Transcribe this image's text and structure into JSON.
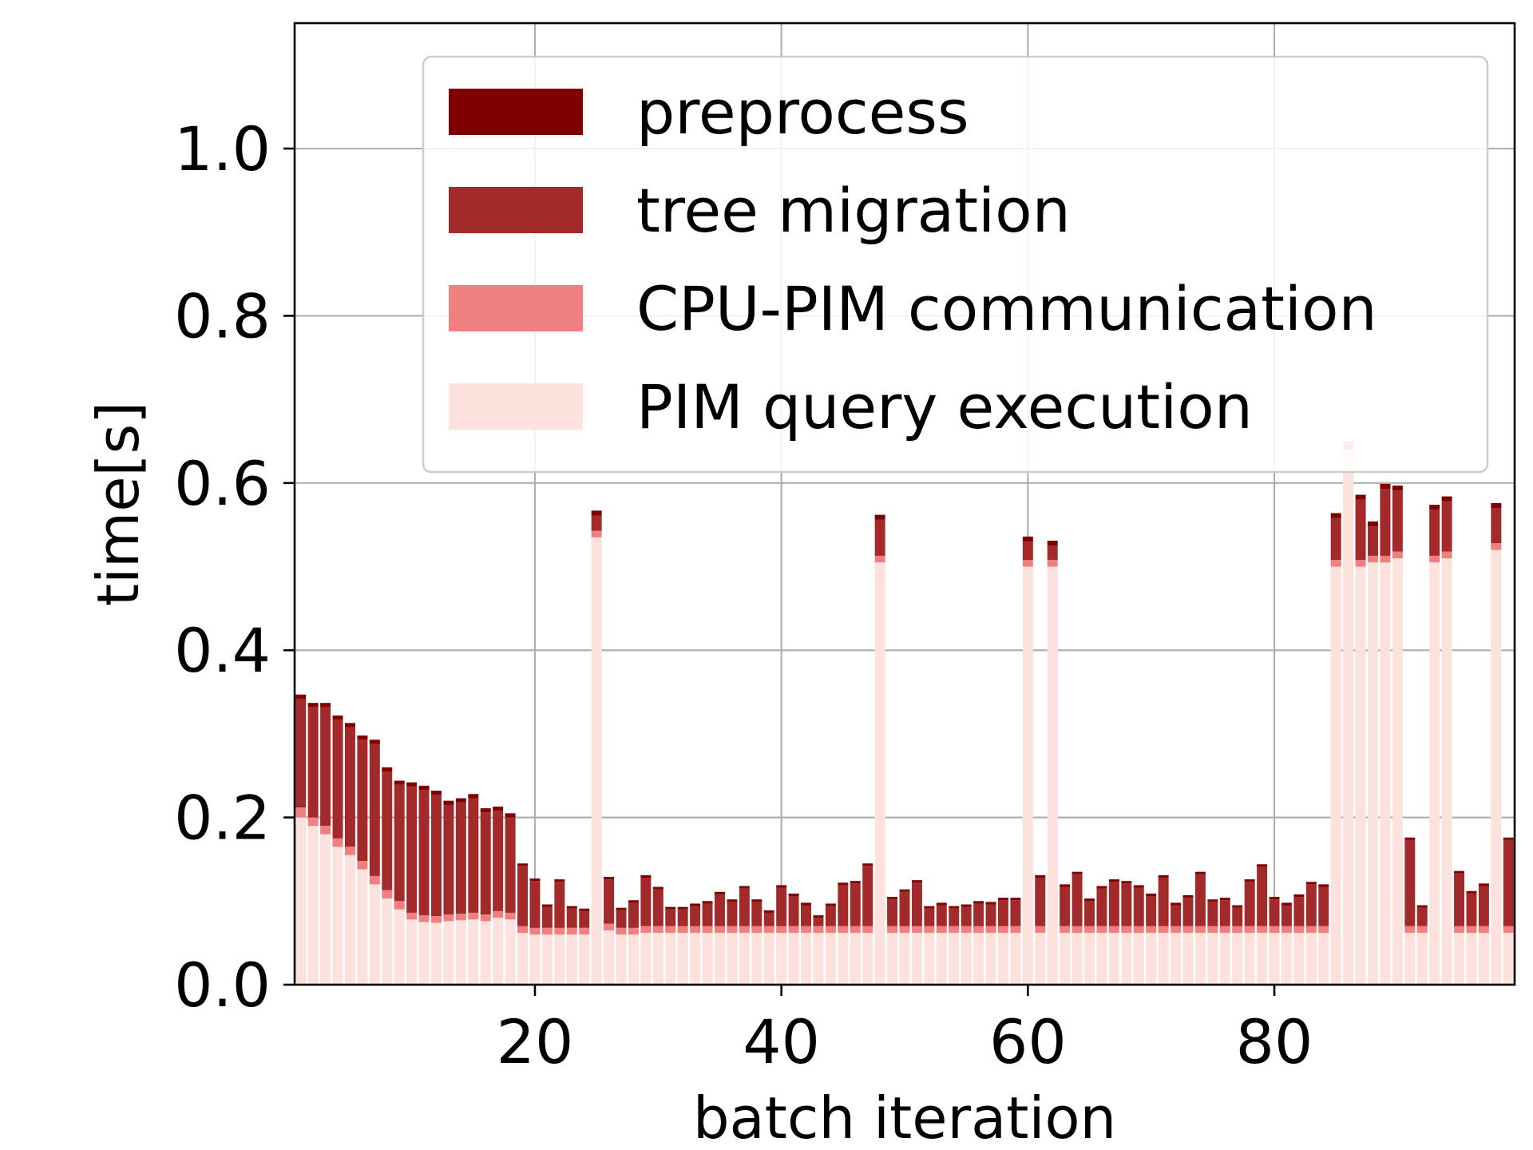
{
  "chart_data": {
    "type": "bar",
    "stacked": true,
    "xlabel": "batch iteration",
    "ylabel": "time[s]",
    "xlim": [
      0.5,
      99.5
    ],
    "ylim": [
      0,
      1.15
    ],
    "xticks": [
      20,
      40,
      60,
      80
    ],
    "yticks": [
      0.0,
      0.2,
      0.4,
      0.6,
      0.8,
      1.0
    ],
    "ytick_labels": [
      "0.0",
      "0.2",
      "0.4",
      "0.6",
      "0.8",
      "1.0"
    ],
    "grid": true,
    "legend_position": "upper-right",
    "series": [
      {
        "name": "PIM query execution",
        "color": "#fde1dd"
      },
      {
        "name": "CPU-PIM communication",
        "color": "#f08080"
      },
      {
        "name": "tree migration",
        "color": "#a32a2b"
      },
      {
        "name": "preprocess",
        "color": "#800000"
      }
    ],
    "legend_order": [
      "preprocess",
      "tree migration",
      "CPU-PIM communication",
      "PIM query execution"
    ],
    "iterations": [
      [
        1,
        0.2,
        0.012,
        0.13,
        0.005
      ],
      [
        2,
        0.19,
        0.01,
        0.132,
        0.005
      ],
      [
        3,
        0.18,
        0.01,
        0.142,
        0.005
      ],
      [
        4,
        0.165,
        0.01,
        0.142,
        0.005
      ],
      [
        5,
        0.155,
        0.01,
        0.143,
        0.005
      ],
      [
        6,
        0.138,
        0.01,
        0.145,
        0.005
      ],
      [
        7,
        0.12,
        0.01,
        0.158,
        0.005
      ],
      [
        8,
        0.103,
        0.01,
        0.142,
        0.005
      ],
      [
        9,
        0.09,
        0.01,
        0.139,
        0.005
      ],
      [
        10,
        0.078,
        0.008,
        0.151,
        0.005
      ],
      [
        11,
        0.075,
        0.008,
        0.15,
        0.005
      ],
      [
        12,
        0.074,
        0.008,
        0.145,
        0.005
      ],
      [
        13,
        0.076,
        0.008,
        0.131,
        0.005
      ],
      [
        14,
        0.077,
        0.008,
        0.133,
        0.005
      ],
      [
        15,
        0.078,
        0.008,
        0.137,
        0.005
      ],
      [
        16,
        0.076,
        0.008,
        0.122,
        0.005
      ],
      [
        17,
        0.08,
        0.008,
        0.12,
        0.005
      ],
      [
        18,
        0.078,
        0.008,
        0.114,
        0.005
      ],
      [
        19,
        0.062,
        0.008,
        0.072,
        0.003
      ],
      [
        20,
        0.06,
        0.008,
        0.056,
        0.003
      ],
      [
        21,
        0.06,
        0.008,
        0.025,
        0.003
      ],
      [
        22,
        0.06,
        0.008,
        0.055,
        0.003
      ],
      [
        23,
        0.06,
        0.008,
        0.023,
        0.003
      ],
      [
        24,
        0.06,
        0.008,
        0.02,
        0.003
      ],
      [
        25,
        0.535,
        0.008,
        0.018,
        0.006
      ],
      [
        26,
        0.065,
        0.008,
        0.053,
        0.003
      ],
      [
        27,
        0.06,
        0.008,
        0.021,
        0.003
      ],
      [
        28,
        0.06,
        0.008,
        0.03,
        0.003
      ],
      [
        29,
        0.062,
        0.008,
        0.058,
        0.003
      ],
      [
        30,
        0.062,
        0.008,
        0.044,
        0.003
      ],
      [
        31,
        0.062,
        0.008,
        0.02,
        0.003
      ],
      [
        32,
        0.062,
        0.008,
        0.02,
        0.003
      ],
      [
        33,
        0.062,
        0.008,
        0.024,
        0.003
      ],
      [
        34,
        0.062,
        0.008,
        0.027,
        0.003
      ],
      [
        35,
        0.062,
        0.008,
        0.038,
        0.003
      ],
      [
        36,
        0.062,
        0.008,
        0.029,
        0.003
      ],
      [
        37,
        0.062,
        0.008,
        0.045,
        0.003
      ],
      [
        38,
        0.062,
        0.008,
        0.029,
        0.003
      ],
      [
        39,
        0.062,
        0.008,
        0.016,
        0.003
      ],
      [
        40,
        0.062,
        0.008,
        0.046,
        0.003
      ],
      [
        41,
        0.062,
        0.008,
        0.036,
        0.003
      ],
      [
        42,
        0.062,
        0.008,
        0.025,
        0.003
      ],
      [
        43,
        0.062,
        0.008,
        0.01,
        0.003
      ],
      [
        44,
        0.062,
        0.008,
        0.024,
        0.003
      ],
      [
        45,
        0.062,
        0.008,
        0.049,
        0.003
      ],
      [
        46,
        0.062,
        0.008,
        0.051,
        0.003
      ],
      [
        47,
        0.062,
        0.008,
        0.072,
        0.003
      ],
      [
        48,
        0.505,
        0.008,
        0.043,
        0.006
      ],
      [
        49,
        0.062,
        0.008,
        0.032,
        0.003
      ],
      [
        50,
        0.062,
        0.008,
        0.041,
        0.003
      ],
      [
        51,
        0.062,
        0.008,
        0.052,
        0.003
      ],
      [
        52,
        0.062,
        0.008,
        0.021,
        0.003
      ],
      [
        53,
        0.062,
        0.008,
        0.025,
        0.003
      ],
      [
        54,
        0.062,
        0.008,
        0.021,
        0.003
      ],
      [
        55,
        0.062,
        0.008,
        0.023,
        0.003
      ],
      [
        56,
        0.062,
        0.008,
        0.027,
        0.003
      ],
      [
        57,
        0.062,
        0.008,
        0.026,
        0.003
      ],
      [
        58,
        0.062,
        0.008,
        0.031,
        0.003
      ],
      [
        59,
        0.062,
        0.008,
        0.031,
        0.003
      ],
      [
        60,
        0.5,
        0.008,
        0.022,
        0.006
      ],
      [
        61,
        0.062,
        0.008,
        0.058,
        0.003
      ],
      [
        62,
        0.5,
        0.008,
        0.017,
        0.006
      ],
      [
        63,
        0.062,
        0.008,
        0.047,
        0.003
      ],
      [
        64,
        0.062,
        0.008,
        0.062,
        0.003
      ],
      [
        65,
        0.062,
        0.008,
        0.03,
        0.003
      ],
      [
        66,
        0.062,
        0.008,
        0.045,
        0.003
      ],
      [
        67,
        0.062,
        0.008,
        0.053,
        0.003
      ],
      [
        68,
        0.062,
        0.008,
        0.051,
        0.003
      ],
      [
        69,
        0.062,
        0.008,
        0.046,
        0.003
      ],
      [
        70,
        0.062,
        0.008,
        0.036,
        0.003
      ],
      [
        71,
        0.062,
        0.008,
        0.058,
        0.003
      ],
      [
        72,
        0.062,
        0.008,
        0.025,
        0.003
      ],
      [
        73,
        0.062,
        0.008,
        0.034,
        0.003
      ],
      [
        74,
        0.062,
        0.008,
        0.062,
        0.003
      ],
      [
        75,
        0.062,
        0.008,
        0.029,
        0.003
      ],
      [
        76,
        0.062,
        0.008,
        0.031,
        0.003
      ],
      [
        77,
        0.062,
        0.008,
        0.022,
        0.003
      ],
      [
        78,
        0.062,
        0.008,
        0.053,
        0.003
      ],
      [
        79,
        0.062,
        0.008,
        0.071,
        0.003
      ],
      [
        80,
        0.062,
        0.008,
        0.032,
        0.003
      ],
      [
        81,
        0.062,
        0.008,
        0.025,
        0.003
      ],
      [
        82,
        0.062,
        0.008,
        0.035,
        0.003
      ],
      [
        83,
        0.062,
        0.008,
        0.05,
        0.003
      ],
      [
        84,
        0.062,
        0.008,
        0.047,
        0.003
      ],
      [
        85,
        0.5,
        0.008,
        0.05,
        0.006
      ],
      [
        86,
        0.64,
        0.01,
        0.0,
        0.0
      ],
      [
        87,
        0.5,
        0.008,
        0.072,
        0.006
      ],
      [
        88,
        0.505,
        0.008,
        0.035,
        0.006
      ],
      [
        89,
        0.505,
        0.008,
        0.08,
        0.006
      ],
      [
        90,
        0.51,
        0.008,
        0.073,
        0.006
      ],
      [
        91,
        0.062,
        0.008,
        0.103,
        0.003
      ],
      [
        92,
        0.062,
        0.008,
        0.022,
        0.003
      ],
      [
        93,
        0.505,
        0.008,
        0.055,
        0.006
      ],
      [
        94,
        0.51,
        0.008,
        0.06,
        0.006
      ],
      [
        95,
        0.062,
        0.008,
        0.063,
        0.003
      ],
      [
        96,
        0.062,
        0.008,
        0.039,
        0.003
      ],
      [
        97,
        0.062,
        0.008,
        0.048,
        0.003
      ],
      [
        98,
        0.52,
        0.008,
        0.042,
        0.006
      ],
      [
        99,
        0.062,
        0.008,
        0.103,
        0.003
      ]
    ]
  }
}
